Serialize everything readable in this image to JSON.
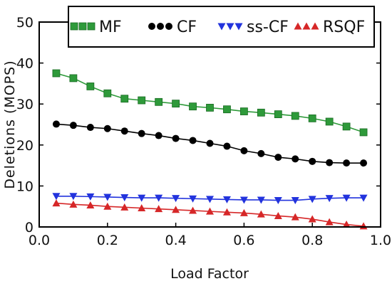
{
  "chart_data": {
    "type": "line",
    "xlabel": "Load Factor",
    "ylabel": "Deletions (MOPS)",
    "xlim": [
      0.0,
      1.0
    ],
    "ylim": [
      0,
      50
    ],
    "xticks": [
      "0.0",
      "0.2",
      "0.4",
      "0.6",
      "0.8",
      "1.0"
    ],
    "yticks": [
      "0",
      "10",
      "20",
      "30",
      "40",
      "50"
    ],
    "grid": false,
    "legend_position": "top",
    "x": [
      0.05,
      0.1,
      0.15,
      0.2,
      0.25,
      0.3,
      0.35,
      0.4,
      0.45,
      0.5,
      0.55,
      0.6,
      0.65,
      0.7,
      0.75,
      0.8,
      0.85,
      0.9,
      0.95
    ],
    "series": [
      {
        "name": "MF",
        "marker": "square",
        "color": "#2e9a3a",
        "values": [
          37.5,
          36.3,
          34.3,
          32.6,
          31.3,
          30.9,
          30.5,
          30.1,
          29.4,
          29.1,
          28.7,
          28.2,
          27.9,
          27.5,
          27.1,
          26.5,
          25.7,
          24.5,
          23.1
        ]
      },
      {
        "name": "CF",
        "marker": "circle",
        "color": "#000000",
        "values": [
          25.1,
          24.8,
          24.3,
          24.0,
          23.4,
          22.8,
          22.3,
          21.6,
          21.1,
          20.4,
          19.7,
          18.6,
          17.9,
          17.0,
          16.6,
          16.0,
          15.7,
          15.6,
          15.6
        ]
      },
      {
        "name": "ss-CF",
        "marker": "triangle-down",
        "color": "#2233dd",
        "values": [
          7.5,
          7.5,
          7.4,
          7.3,
          7.2,
          7.1,
          7.1,
          7.0,
          6.9,
          6.8,
          6.7,
          6.6,
          6.6,
          6.5,
          6.5,
          6.8,
          7.0,
          7.1,
          7.1
        ]
      },
      {
        "name": "RSQF",
        "marker": "triangle-up",
        "color": "#d62728",
        "values": [
          5.8,
          5.5,
          5.3,
          5.0,
          4.8,
          4.6,
          4.4,
          4.2,
          4.0,
          3.8,
          3.6,
          3.4,
          3.1,
          2.7,
          2.4,
          1.9,
          1.2,
          0.6,
          0.2
        ]
      }
    ]
  }
}
